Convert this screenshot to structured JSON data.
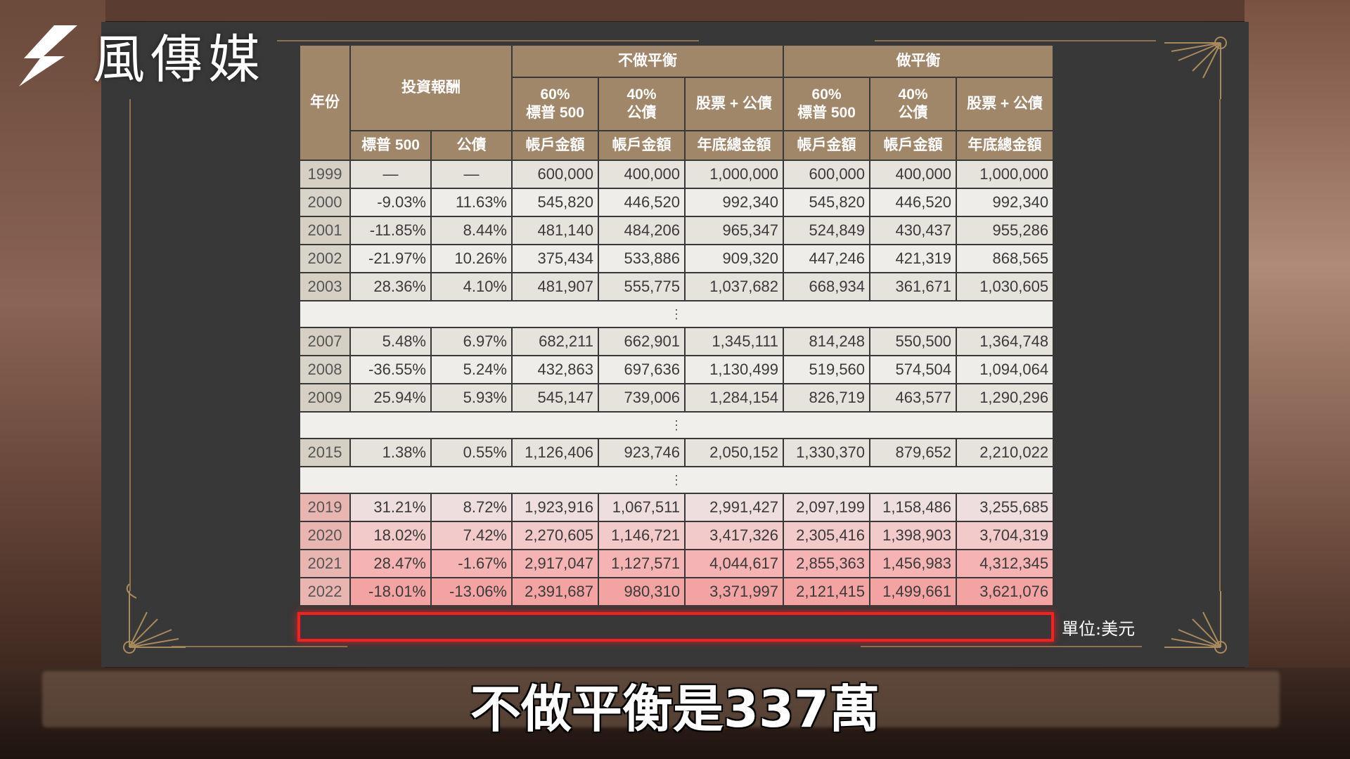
{
  "logo": {
    "text": "風傳媒"
  },
  "table": {
    "header": {
      "year": "年份",
      "returns_group": "投資報酬",
      "no_rebalance": "不做平衡",
      "rebalance": "做平衡",
      "sp500_60": "60%\n標普 500",
      "bond_40": "40%\n公債",
      "stock_bond": "股票 + 公債",
      "sp500": "標普 500",
      "bond": "公債",
      "account_amount": "帳戶金額",
      "year_end_total": "年底總金額"
    },
    "rows": [
      {
        "year": "1999",
        "sp": "—",
        "bond": "—",
        "n60": "600,000",
        "n40": "400,000",
        "ntot": "1,000,000",
        "r60": "600,000",
        "r40": "400,000",
        "rtot": "1,000,000"
      },
      {
        "year": "2000",
        "sp": "-9.03%",
        "bond": "11.63%",
        "n60": "545,820",
        "n40": "446,520",
        "ntot": "992,340",
        "r60": "545,820",
        "r40": "446,520",
        "rtot": "992,340"
      },
      {
        "year": "2001",
        "sp": "-11.85%",
        "bond": "8.44%",
        "n60": "481,140",
        "n40": "484,206",
        "ntot": "965,347",
        "r60": "524,849",
        "r40": "430,437",
        "rtot": "955,286"
      },
      {
        "year": "2002",
        "sp": "-21.97%",
        "bond": "10.26%",
        "n60": "375,434",
        "n40": "533,886",
        "ntot": "909,320",
        "r60": "447,246",
        "r40": "421,319",
        "rtot": "868,565"
      },
      {
        "year": "2003",
        "sp": "28.36%",
        "bond": "4.10%",
        "n60": "481,907",
        "n40": "555,775",
        "ntot": "1,037,682",
        "r60": "668,934",
        "r40": "361,671",
        "rtot": "1,030,605"
      },
      {
        "gap": true,
        "text": "⋮"
      },
      {
        "year": "2007",
        "sp": "5.48%",
        "bond": "6.97%",
        "n60": "682,211",
        "n40": "662,901",
        "ntot": "1,345,111",
        "r60": "814,248",
        "r40": "550,500",
        "rtot": "1,364,748"
      },
      {
        "year": "2008",
        "sp": "-36.55%",
        "bond": "5.24%",
        "n60": "432,863",
        "n40": "697,636",
        "ntot": "1,130,499",
        "r60": "519,560",
        "r40": "574,504",
        "rtot": "1,094,064"
      },
      {
        "year": "2009",
        "sp": "25.94%",
        "bond": "5.93%",
        "n60": "545,147",
        "n40": "739,006",
        "ntot": "1,284,154",
        "r60": "826,719",
        "r40": "463,577",
        "rtot": "1,290,296"
      },
      {
        "gap": true,
        "text": "⋮"
      },
      {
        "year": "2015",
        "sp": "1.38%",
        "bond": "0.55%",
        "n60": "1,126,406",
        "n40": "923,746",
        "ntot": "2,050,152",
        "r60": "1,330,370",
        "r40": "879,652",
        "rtot": "2,210,022"
      },
      {
        "gap": true,
        "text": "⋮"
      },
      {
        "year": "2019",
        "sp": "31.21%",
        "bond": "8.72%",
        "n60": "1,923,916",
        "n40": "1,067,511",
        "ntot": "2,991,427",
        "r60": "2,097,199",
        "r40": "1,158,486",
        "rtot": "3,255,685"
      },
      {
        "year": "2020",
        "sp": "18.02%",
        "bond": "7.42%",
        "n60": "2,270,605",
        "n40": "1,146,721",
        "ntot": "3,417,326",
        "r60": "2,305,416",
        "r40": "1,398,903",
        "rtot": "3,704,319"
      },
      {
        "year": "2021",
        "sp": "28.47%",
        "bond": "-1.67%",
        "n60": "2,917,047",
        "n40": "1,127,571",
        "ntot": "4,044,617",
        "r60": "2,855,363",
        "r40": "1,456,983",
        "rtot": "4,312,345"
      },
      {
        "year": "2022",
        "sp": "-18.01%",
        "bond": "-13.06%",
        "n60": "2,391,687",
        "n40": "980,310",
        "ntot": "3,371,997",
        "r60": "2,121,415",
        "r40": "1,499,661",
        "rtot": "3,621,076"
      }
    ],
    "unit": "單位:美元"
  },
  "subtitle": "不做平衡是337萬",
  "colors": {
    "header": "#a0876a",
    "highlight": "#ff1d1d",
    "panel": "#383838"
  }
}
